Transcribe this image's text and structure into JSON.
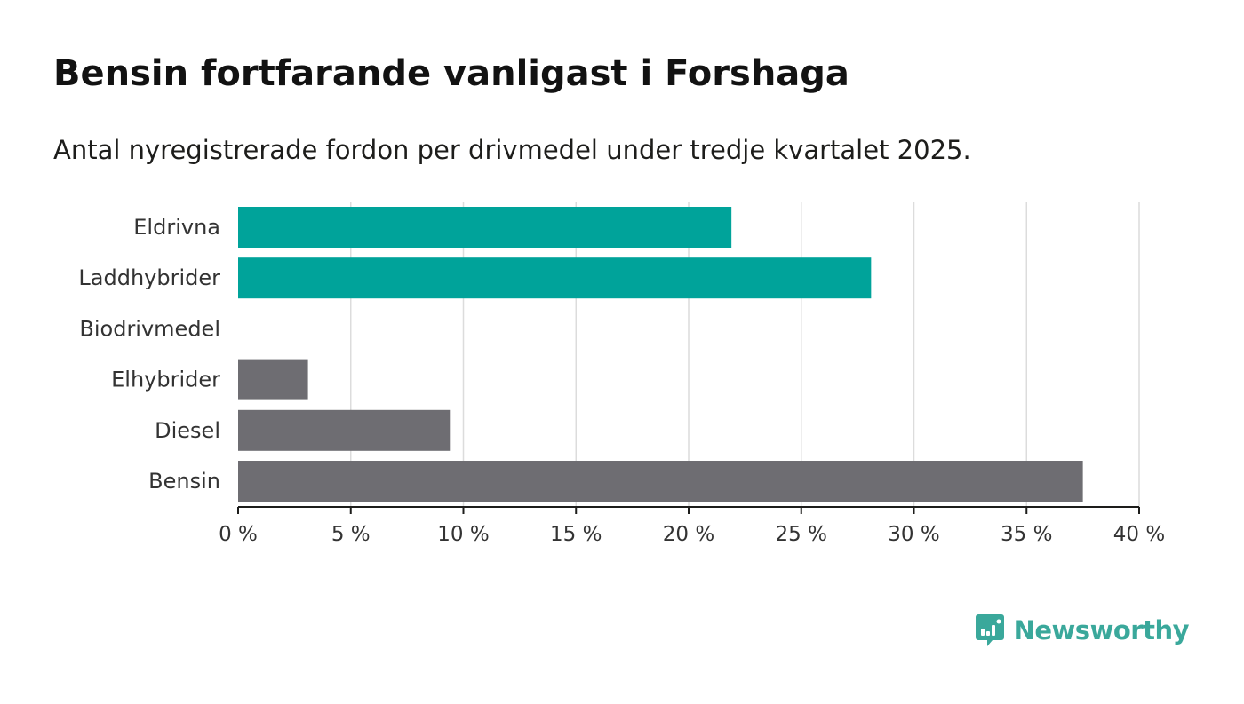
{
  "header": {
    "title": "Bensin fortfarande vanligast i Forshaga",
    "subtitle": "Antal nyregistrerade fordon per drivmedel under tredje kvartalet 2025."
  },
  "chart_data": {
    "type": "bar",
    "orientation": "horizontal",
    "categories": [
      "Eldrivna",
      "Laddhybrider",
      "Biodrivmedel",
      "Elhybrider",
      "Diesel",
      "Bensin"
    ],
    "values": [
      21.9,
      28.1,
      0,
      3.1,
      9.4,
      37.5
    ],
    "colors": [
      "#00a39a",
      "#00a39a",
      "#00a39a",
      "#6e6d72",
      "#6e6d72",
      "#6e6d72"
    ],
    "xlim": [
      0,
      40
    ],
    "ticks": [
      0,
      5,
      10,
      15,
      20,
      25,
      30,
      35,
      40
    ],
    "tick_labels": [
      "0 %",
      "5 %",
      "10 %",
      "15 %",
      "20 %",
      "25 %",
      "30 %",
      "35 %",
      "40 %"
    ],
    "xlabel": "",
    "ylabel": "",
    "grid": true
  },
  "branding": {
    "name": "Newsworthy",
    "color": "#3aa89b"
  }
}
